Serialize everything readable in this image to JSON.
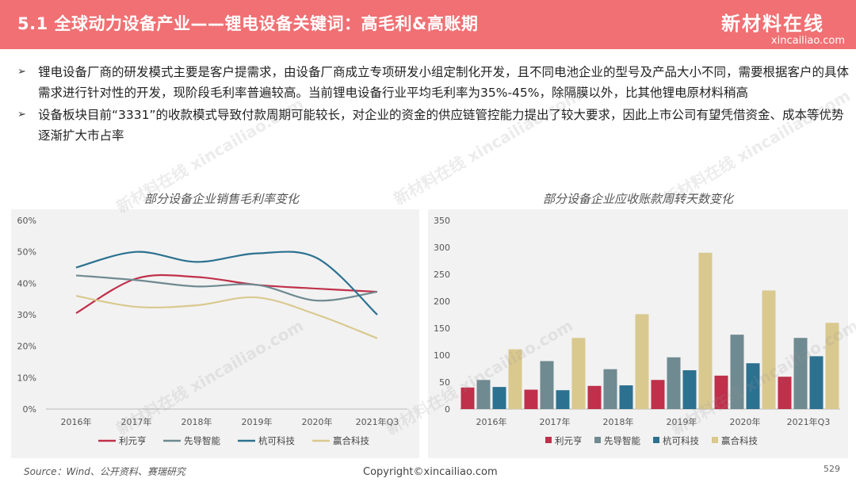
{
  "header": {
    "title": "5.1 全球动力设备产业——锂电设备关键词：高毛利&高账期",
    "logo_text": "新材料在线",
    "logo_url": "xincailiao.com"
  },
  "bullets": [
    {
      "marker": "➢",
      "text": "锂电设备厂商的研发模式主要是客户提需求，由设备厂商成立专项研发小组定制化开发，且不同电池企业的型号及产品大小不同，需要根据客户的具体需求进行针对性的开发，现阶段毛利率普遍较高。当前锂电设备行业平均毛利率为35%-45%，除隔膜以外，比其他锂电原材料稍高"
    },
    {
      "marker": "➢",
      "text": "设备板块目前“3331”的收款模式导致付款周期可能较长，对企业的资金的供应链管控能力提出了较大要求，因此上市公司有望凭借资金、成本等优势逐渐扩大市占率"
    }
  ],
  "chart_data": [
    {
      "type": "line",
      "title": "部分设备企业销售毛利率变化",
      "categories": [
        "2016年",
        "2017年",
        "2018年",
        "2019年",
        "2020年",
        "2021年Q3"
      ],
      "y_ticks": [
        "0%",
        "10%",
        "20%",
        "30%",
        "40%",
        "50%",
        "60%"
      ],
      "ylim": [
        0,
        60
      ],
      "legend_position": "bottom",
      "series": [
        {
          "name": "利元亨",
          "color": "#c0304a",
          "values": [
            30.5,
            41.5,
            42.0,
            39.5,
            38.3,
            37.3
          ]
        },
        {
          "name": "先导智能",
          "color": "#6f8a91",
          "values": [
            42.5,
            41.0,
            39.0,
            39.5,
            34.5,
            37.3
          ]
        },
        {
          "name": "杭可科技",
          "color": "#2c7190",
          "values": [
            45.0,
            50.0,
            46.8,
            49.5,
            48.0,
            30.0
          ]
        },
        {
          "name": "赢合科技",
          "color": "#d9c98f",
          "values": [
            36.0,
            32.5,
            33.0,
            35.5,
            30.0,
            22.5
          ]
        }
      ]
    },
    {
      "type": "bar",
      "title": "部分设备企业应收账款周转天数变化",
      "categories": [
        "2016年",
        "2017年",
        "2018年",
        "2019年",
        "2020年",
        "2021年Q3"
      ],
      "y_ticks": [
        "0",
        "50",
        "100",
        "150",
        "200",
        "250",
        "300",
        "350"
      ],
      "ylim": [
        0,
        350
      ],
      "legend_position": "bottom",
      "series": [
        {
          "name": "利元亨",
          "color": "#c0304a",
          "values": [
            40,
            36,
            43,
            54,
            62,
            60
          ]
        },
        {
          "name": "先导智能",
          "color": "#6f8a91",
          "values": [
            54,
            89,
            74,
            96,
            138,
            132
          ]
        },
        {
          "name": "杭可科技",
          "color": "#2c7190",
          "values": [
            41,
            35,
            44,
            72,
            85,
            98
          ]
        },
        {
          "name": "赢合科技",
          "color": "#d9c98f",
          "values": [
            111,
            132,
            176,
            290,
            220,
            160
          ]
        }
      ]
    }
  ],
  "watermark": {
    "cn": "新材料在线",
    "en": "xincailiao.com"
  },
  "footer": {
    "source": "Source：Wind、公开资料、赛瑞研究",
    "copyright": "Copyright©xincailiao.com",
    "page": "529"
  }
}
